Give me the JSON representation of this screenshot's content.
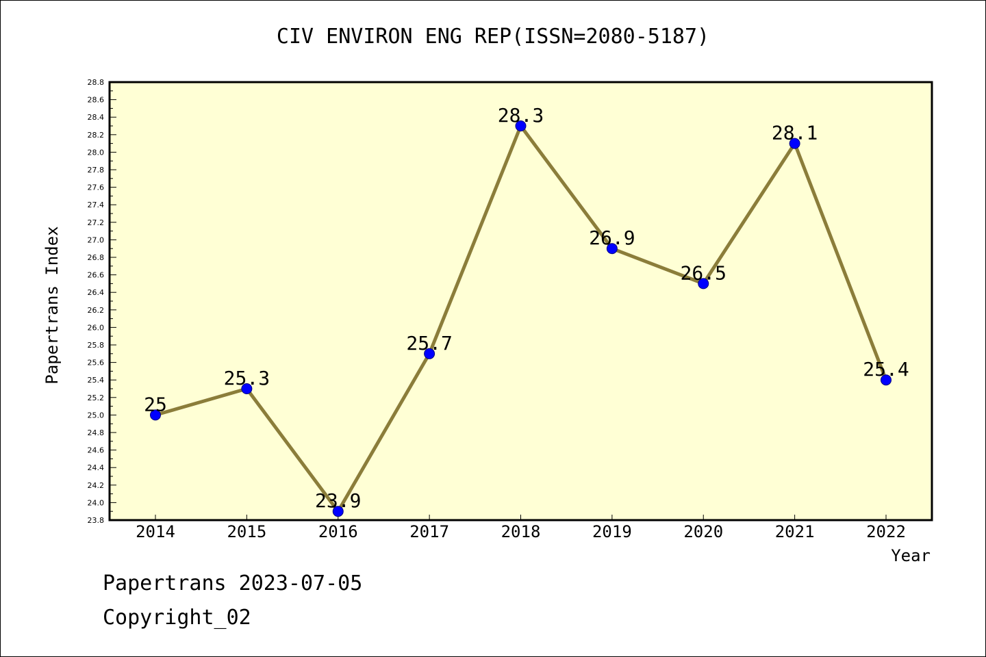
{
  "chart_data": {
    "type": "line",
    "title": "CIV ENVIRON ENG REP(ISSN=2080-5187)",
    "xlabel": "Year",
    "ylabel": "Papertrans Index",
    "x": [
      "2014",
      "2015",
      "2016",
      "2017",
      "2018",
      "2019",
      "2020",
      "2021",
      "2022"
    ],
    "values": [
      25.0,
      25.3,
      23.9,
      25.7,
      28.3,
      26.9,
      26.5,
      28.1,
      25.4
    ],
    "data_labels": [
      "25",
      "25.3",
      "23.9",
      "25.7",
      "28.3",
      "26.9",
      "26.5",
      "28.1",
      "25.4"
    ],
    "ylim": [
      23.8,
      28.8
    ],
    "y_ticks": [
      "23.8",
      "24.0",
      "24.2",
      "24.4",
      "24.6",
      "24.8",
      "25.0",
      "25.2",
      "25.4",
      "25.6",
      "25.8",
      "26.0",
      "26.2",
      "26.4",
      "26.6",
      "26.8",
      "27.0",
      "27.2",
      "27.4",
      "27.6",
      "27.8",
      "28.0",
      "28.2",
      "28.4",
      "28.6",
      "28.8"
    ],
    "grid": false,
    "colors": {
      "plot_background": "#ffffd5",
      "line": "#8b7d3a",
      "marker": "#0000ff",
      "marker_edge": "#000080"
    }
  },
  "footer": {
    "line1": "Papertrans 2023-07-05",
    "line2": "Copyright_02"
  }
}
